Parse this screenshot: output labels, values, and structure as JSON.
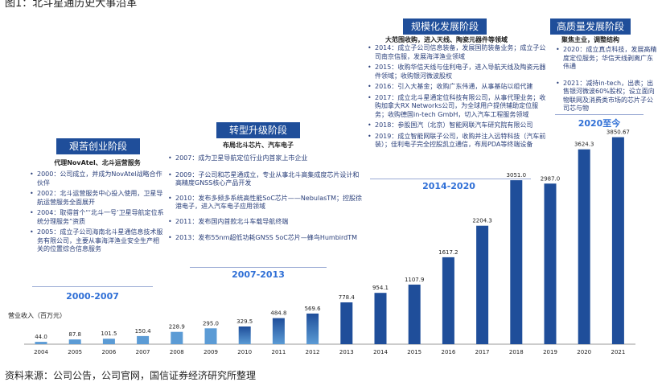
{
  "figure_title": "图1：北斗星通历史大事沿革",
  "source": "资料来源：公司公告，公司官网，国信证券经济研究所整理",
  "phases": [
    {
      "title": "艰苦创业阶段",
      "subtitle": "代理NovAtel、北斗运营服务",
      "period": "2000-2007",
      "events": [
        "2000：公司成立，并成为NovAtel战略合作伙伴",
        "2002：北斗运营服务中心投入使用，卫星导航运营服务全面展开",
        "2004：取得首个“‘北斗一号’卫星导航定位系统分理服务”资质",
        "2005：成立子公司海南北斗星通信息技术服务有限公司，主要从事海洋渔业安全生产相关的位置综合信息服务"
      ]
    },
    {
      "title": "转型升级阶段",
      "subtitle": "布局北斗芯片、汽车电子",
      "period": "2007-2013",
      "events": [
        "2007：成为卫星导航定位行业内首家上市企业",
        "2009：子公司和芯星通成立，专业从事北斗高集成度芯片设计和高精度GNSS核心产品开发",
        "2010：发布多频多系统高性能SoC芯片——NebulasTM；控股徐港电子，进入汽车电子应用领域",
        "2011：发布国内首款北斗车载导航终端",
        "2013：发布55nm超低功耗GNSS SoC芯片—蜂鸟HumbirdTM"
      ]
    },
    {
      "title": "规模化发展阶段",
      "subtitle": "大范围收购，进入天线、陶瓷元器件等领域",
      "period": "2014-2020",
      "events": [
        "2014：成立子公司信息装备，发展国防装备业务；成立子公司南京信服，发展海洋渔业领域",
        "2015：收购华信天线与佳利电子，进入导航天线及陶瓷元器件领域；收购银河微波股权",
        "2016：引入大基金；收购广东伟通，从事基站以组代建",
        "2017：成立北斗星通定位科技有限公司，从事代理业务；收购加拿大RX Networks公司，为全球用户提供辅助定位服务；收购德国in-tech GmbH，切入汽车工程服务领域",
        "2018：参股国汽（北京）智能网联汽车研究院有限公司",
        "2019：成立智能网联子公司，收购并注入远特科技（汽车前装）；佳利电子完全控股凯立通信，布局PDA等终端设备"
      ]
    },
    {
      "title": "高质量发展阶段",
      "subtitle": "聚焦主业，调整结构",
      "period": "2020至今",
      "events": [
        "2020：成立真点科技，发展高精度定位服务；华信天线剥离广东伟通",
        "2021：减持in-tech，出表；出售银河微波60%股权；设立面向物联网及消费类市场的芯片子公司芯与物"
      ]
    }
  ],
  "chart_data": {
    "type": "bar",
    "title": "",
    "xlabel": "",
    "ylabel": "营业收入（百万元）",
    "categories": [
      "2004",
      "2005",
      "2006",
      "2007",
      "2008",
      "2009",
      "2010",
      "2011",
      "2012",
      "2013",
      "2014",
      "2015",
      "2016",
      "2017",
      "2018",
      "2019",
      "2020",
      "2021"
    ],
    "values": [
      44.0,
      87.8,
      101.5,
      150.4,
      228.9,
      295.0,
      329.5,
      484.8,
      569.6,
      778.4,
      954.1,
      1107.9,
      1617.2,
      2204.3,
      3051.0,
      2987.0,
      3624.3,
      3850.67
    ],
    "value_labels": [
      "44.0",
      "87.8",
      "101.5",
      "150.4",
      "228.9",
      "295.0",
      "329.5",
      "484.8",
      "569.6",
      "778.4",
      "954.1",
      "1107.9",
      "1617.2",
      "2204.3",
      "3051.0",
      "2987.0",
      "3624.3",
      "3850.67"
    ],
    "colors": {
      "bar_light": "#5b9bd5",
      "bar_dark": "#1f4e9a",
      "phase_box": "#1f4e9a",
      "period_text": "#2f6fd6"
    },
    "ylim": [
      0,
      4000
    ],
    "grid": false,
    "legend": "none"
  }
}
